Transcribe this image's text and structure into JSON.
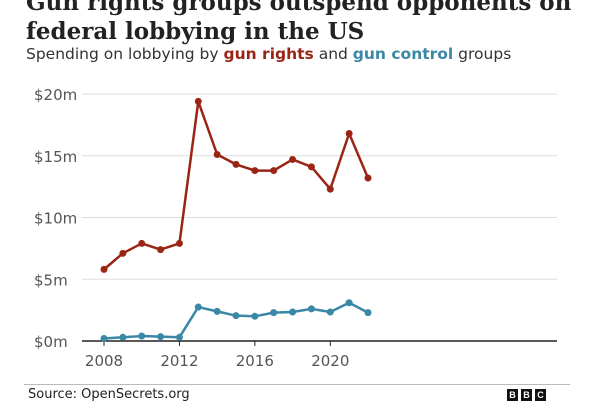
{
  "title": "Gun rights groups outspend opponents on federal lobbying in the US",
  "subtitle": {
    "prefix": "Spending on lobbying by ",
    "red_label": "gun rights",
    "middle": " and ",
    "blue_label": "gun control",
    "suffix": " groups"
  },
  "source": "Source: OpenSecrets.org",
  "logo": [
    "B",
    "B",
    "C"
  ],
  "chart_data": {
    "type": "line",
    "title": "Gun rights groups outspend opponents on federal lobbying in the US",
    "subtitle": "Spending on lobbying by gun rights and gun control groups",
    "x": [
      2008,
      2009,
      2010,
      2011,
      2012,
      2013,
      2014,
      2015,
      2016,
      2017,
      2018,
      2019,
      2020,
      2021,
      2022
    ],
    "series": [
      {
        "name": "gun rights",
        "color": "#9b2515",
        "values": [
          5.8,
          7.1,
          7.9,
          7.4,
          7.9,
          19.4,
          15.1,
          14.3,
          13.8,
          13.8,
          14.7,
          14.1,
          12.3,
          16.8,
          13.2
        ]
      },
      {
        "name": "gun control",
        "color": "#3a87a6",
        "values": [
          0.2,
          0.3,
          0.4,
          0.35,
          0.3,
          2.75,
          2.4,
          2.05,
          2.0,
          2.3,
          2.35,
          2.6,
          2.35,
          3.1,
          2.3
        ]
      }
    ],
    "ylim": [
      0,
      20
    ],
    "xlim": [
      2008,
      2022
    ],
    "yticks": [
      0,
      5,
      10,
      15,
      20
    ],
    "ytick_labels": [
      "$0m",
      "$5m",
      "$10m",
      "$15m",
      "$20m"
    ],
    "xticks": [
      2008,
      2012,
      2016,
      2020
    ],
    "xtick_labels": [
      "2008",
      "2012",
      "2016",
      "2020"
    ],
    "grid": true,
    "units": "US dollars (millions)"
  }
}
